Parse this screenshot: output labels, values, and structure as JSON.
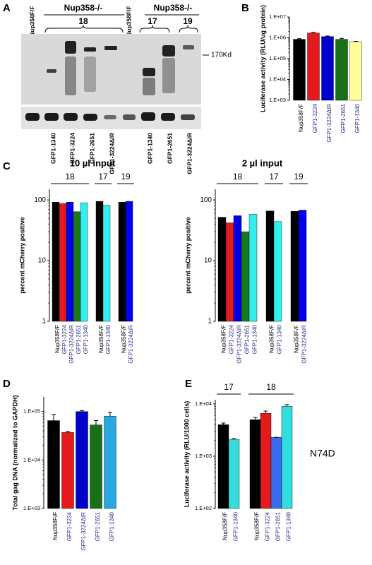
{
  "panel_labels": [
    "A",
    "B",
    "C",
    "D",
    "E"
  ],
  "blot": {
    "top_labels": [
      "Nup358F/F",
      "Nup358-/-",
      "Nup358F/F",
      "Nup358-/-"
    ],
    "group_labels": [
      "18",
      "17",
      "19"
    ],
    "lane_labels": [
      "GFP1-1340",
      "GFP1-3224",
      "GFP1-2651",
      "GFP1-3224ΔIR",
      "GFP1-1340",
      "GFP1-2651",
      "GFP1-3224ΔIR"
    ],
    "size_marker": "170Kd"
  },
  "chart_data": [
    {
      "type": "bar",
      "y_label": "Luciferase activity (RLU/ug protein)",
      "categories": [
        "Nup358F/F",
        "GFP1-3224",
        "GFP1-3224ΔIR",
        "GFP1-2651",
        "GFP1-1340"
      ],
      "values": [
        850000,
        1700000,
        1150000,
        850000,
        650000
      ],
      "errors": [
        60000,
        120000,
        60000,
        90000,
        30000
      ],
      "colors": [
        "#000000",
        "#e41a1c",
        "#0000cc",
        "#1a701a",
        "#ffff99"
      ],
      "log_scale": true,
      "ylim": [
        1000,
        10000000
      ],
      "yticks": [
        {
          "value": 1000,
          "label": "1.E+03"
        },
        {
          "value": 10000,
          "label": "1.E+04"
        },
        {
          "value": 100000,
          "label": "1.E+05"
        },
        {
          "value": 1000000,
          "label": "1.E+06"
        },
        {
          "value": 10000000,
          "label": "1.E+07"
        }
      ]
    },
    {
      "type": "grouped_bar",
      "title": "10 µl input",
      "y_label": "percent mCherry positive",
      "groups": [
        {
          "label": "18",
          "categories": [
            "Nup358F/F",
            "GFP1-3224",
            "GFP1-3224ΔIR",
            "GFP1-2651",
            "GFP1-1340"
          ],
          "values": [
            92,
            87,
            92,
            64,
            90
          ],
          "colors": [
            "#000000",
            "#e41a1c",
            "#0000ee",
            "#1a7a1a",
            "#33eeee"
          ]
        },
        {
          "label": "17",
          "categories": [
            "Nup358F/F",
            "GFP1-1340"
          ],
          "values": [
            95,
            82
          ],
          "colors": [
            "#000000",
            "#33eeee"
          ]
        },
        {
          "label": "19",
          "categories": [
            "Nup358F/F",
            "GFP1-3224ΔIR"
          ],
          "values": [
            92,
            95
          ],
          "colors": [
            "#000000",
            "#0000ee"
          ]
        }
      ],
      "log_scale": true,
      "ylim": [
        1,
        150
      ],
      "yticks": [
        1,
        10,
        100
      ]
    },
    {
      "type": "grouped_bar",
      "title": "2 µl input",
      "y_label": "percent mCherry positive",
      "groups": [
        {
          "label": "18",
          "categories": [
            "Nup358F/F",
            "GFP1-3224",
            "GFP1-3224ΔIR",
            "GFP1-2651",
            "GFP1-1340"
          ],
          "values": [
            52,
            42,
            55,
            30,
            58
          ],
          "colors": [
            "#000000",
            "#e41a1c",
            "#0000ee",
            "#1a7a1a",
            "#33eeee"
          ]
        },
        {
          "label": "17",
          "categories": [
            "Nup358F/F",
            "GFP1-1340"
          ],
          "values": [
            66,
            44
          ],
          "colors": [
            "#000000",
            "#33eeee"
          ]
        },
        {
          "label": "19",
          "categories": [
            "Nup358F/F",
            "GFP1-3224ΔIR"
          ],
          "values": [
            65,
            68
          ],
          "colors": [
            "#000000",
            "#0000ee"
          ]
        }
      ],
      "log_scale": true,
      "ylim": [
        1,
        150
      ],
      "yticks": [
        1,
        10,
        100
      ]
    },
    {
      "type": "bar",
      "y_label": "Total gag DNA (normalized to GAPDH)",
      "categories": [
        "Nup358F/F",
        "GFP1-3224",
        "GFP1-3224ΔIR",
        "GFP1-2651",
        "GFP1-1340"
      ],
      "values": [
        65000,
        37000,
        100000,
        53000,
        80000
      ],
      "errors": [
        22000,
        2000,
        5000,
        12000,
        16000
      ],
      "colors": [
        "#000000",
        "#e41a1c",
        "#0000cc",
        "#1a701a",
        "#2aa7df"
      ],
      "log_scale": true,
      "ylim": [
        1000,
        200000
      ],
      "yticks": [
        {
          "value": 1000,
          "label": "1.E+03"
        },
        {
          "value": 10000,
          "label": "1.E+04"
        },
        {
          "value": 100000,
          "label": "1.E+05"
        }
      ]
    },
    {
      "type": "grouped_bar",
      "y_label": "Luciferase activity (RLU/1000 cells)",
      "annotation": "N74D",
      "groups": [
        {
          "label": "17",
          "categories": [
            "Nup358F/F",
            "GFP1-1340"
          ],
          "values": [
            4000,
            2100
          ],
          "errors": [
            300,
            80
          ],
          "colors": [
            "#000000",
            "#33dddd"
          ]
        },
        {
          "label": "18",
          "categories": [
            "Nup358F/F",
            "GFP1-3224",
            "GFP1-2651",
            "GFP1-1340"
          ],
          "values": [
            5000,
            6600,
            2300,
            9000
          ],
          "errors": [
            500,
            700,
            0,
            700
          ],
          "colors": [
            "#000000",
            "#e41a1c",
            "#3a6cf0",
            "#33dddd"
          ]
        }
      ],
      "log_scale": true,
      "ylim": [
        100,
        12000
      ],
      "yticks": [
        {
          "value": 100,
          "label": "1.E+02"
        },
        {
          "value": 1000,
          "label": "1.E+03"
        },
        {
          "value": 10000,
          "label": "1.E+04"
        }
      ]
    }
  ]
}
